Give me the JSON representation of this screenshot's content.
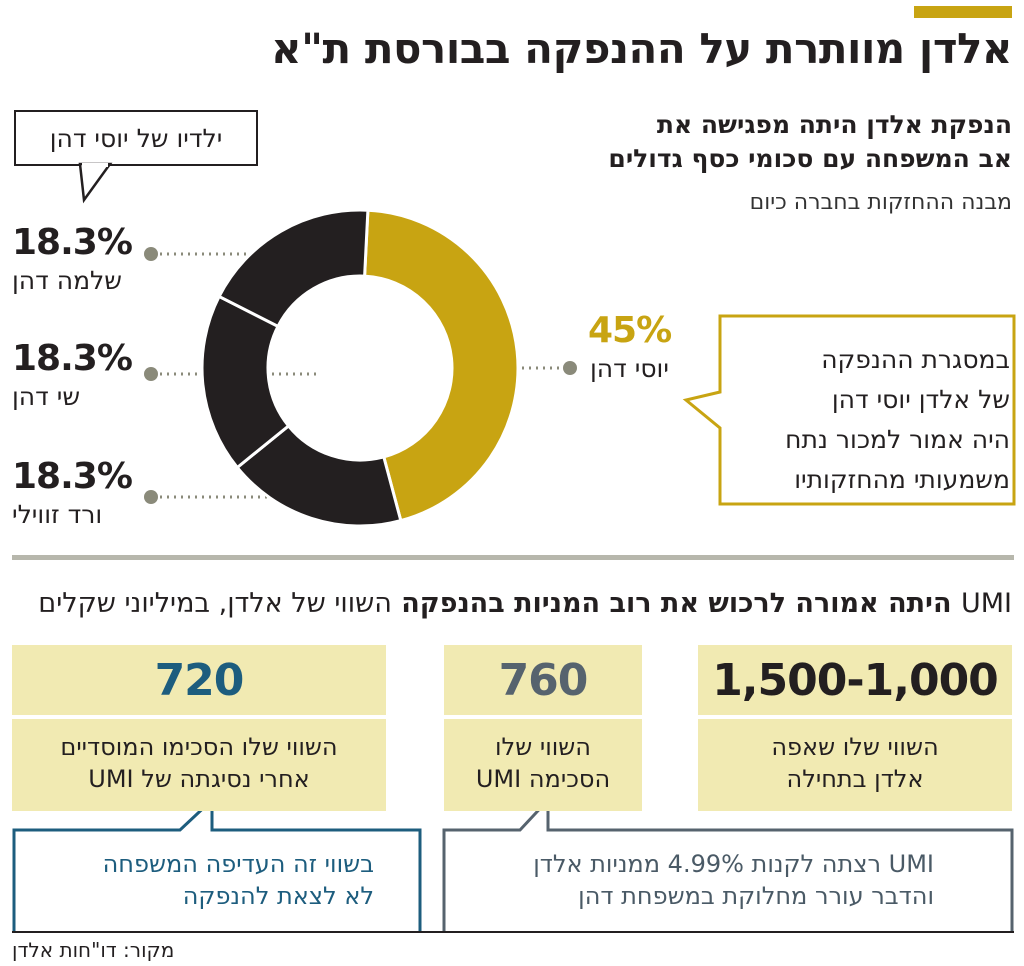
{
  "header": {
    "title": "אלדן מוותרת על ההנפקה בבורסת ת\"א",
    "subtitle_line1": "הנפקת אלדן היתה מפגישה את",
    "subtitle_line2": "אב המשפחה עם סכומי כסף גדולים",
    "caption": "מבנה ההחזקות בחברה כיום"
  },
  "kids_callout": "ילדיו של יוסי דהן",
  "colors": {
    "gold": "#c8a412",
    "dark": "#231f20",
    "card": "#f1eab2",
    "blue": "#1d5d7e",
    "gray": "#56636e",
    "divider": "#b7b7ac"
  },
  "chart_data": {
    "type": "pie",
    "title": "מבנה ההחזקות בחברה כיום",
    "slices": [
      {
        "label": "יוסי דהן",
        "value": 45,
        "display": "45%",
        "color": "#c8a412"
      },
      {
        "label": "ורד זווילי",
        "value": 18.3,
        "display": "18.3%",
        "color": "#231f20"
      },
      {
        "label": "שי דהן",
        "value": 18.3,
        "display": "18.3%",
        "color": "#231f20"
      },
      {
        "label": "שלמה דהן",
        "value": 18.3,
        "display": "18.3%",
        "color": "#231f20"
      }
    ]
  },
  "yosi_note": {
    "line1": "במסגרת ההנפקה",
    "line2": "של אלדן יוסי דהן",
    "line3": "היה אמור למכור נתח",
    "line4": "משמעותי מהחזקותיו"
  },
  "valuation": {
    "subtitle_prefix": "UMI",
    "subtitle_bold": " היתה אמורה לרכוש את רוב המניות בהנפקה ",
    "subtitle_rest": "השווי של אלדן, במיליוני שקלים",
    "cards": [
      {
        "value": "1,500-1,000",
        "line1": "השווי שלו שאפה",
        "line2": "אלדן בתחילה",
        "value_color": "#231f20"
      },
      {
        "value": "760",
        "line1": "השווי שלו",
        "line2": "הסכימה UMI",
        "value_color": "#56636e"
      },
      {
        "value": "720",
        "line1": "השווי שלו הסכימו המוסדיים",
        "line2": "אחרי נסיגתה של UMI",
        "value_color": "#1d5d7e"
      }
    ],
    "note_gray_line1": "UMI רצתה לקנות 4.99% ממניות אלדן",
    "note_gray_line2": "והדבר עורר מחלוקת במשפחת דהן",
    "note_blue_line1": "בשווי זה העדיפה המשפחה",
    "note_blue_line2": "לא לצאת להנפקה"
  },
  "source": "מקור: דו\"חות אלדן"
}
